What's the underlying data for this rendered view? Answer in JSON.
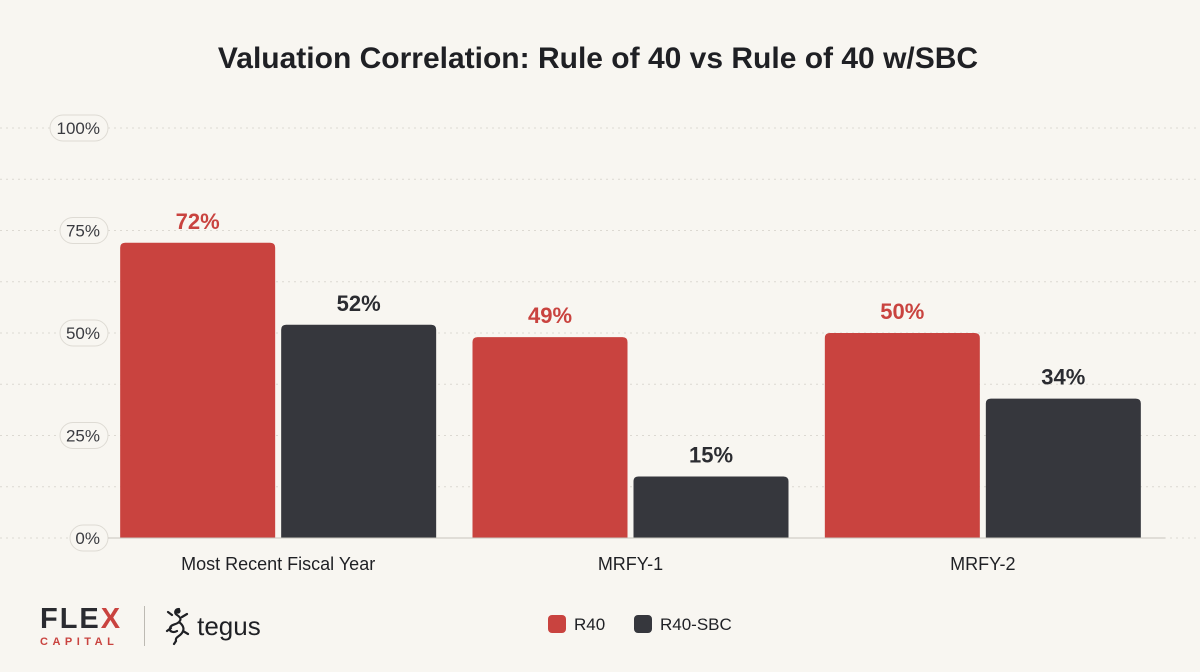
{
  "chart_data": {
    "type": "bar",
    "title": "Valuation Correlation: Rule of 40 vs Rule of 40 w/SBC",
    "categories": [
      "Most Recent Fiscal Year",
      "MRFY-1",
      "MRFY-2"
    ],
    "series": [
      {
        "name": "R40",
        "values": [
          72,
          49,
          50
        ],
        "labels": [
          "72%",
          "49%",
          "50%"
        ],
        "color": "#c9433f"
      },
      {
        "name": "R40-SBC",
        "values": [
          52,
          15,
          34
        ],
        "labels": [
          "52%",
          "15%",
          "34%"
        ],
        "color": "#36373d"
      }
    ],
    "yticks": [
      {
        "value": 0,
        "label": "0%"
      },
      {
        "value": 25,
        "label": "25%"
      },
      {
        "value": 50,
        "label": "50%"
      },
      {
        "value": 75,
        "label": "75%"
      },
      {
        "value": 100,
        "label": "100%"
      }
    ],
    "ylim": [
      0,
      100
    ],
    "xlabel": "",
    "ylabel": "",
    "grid": true,
    "legend_position": "bottom-center"
  },
  "footer": {
    "flex_logo": {
      "word": "FLEX",
      "sub": "CAPITAL"
    },
    "tegus_logo": {
      "word": "tegus"
    }
  }
}
